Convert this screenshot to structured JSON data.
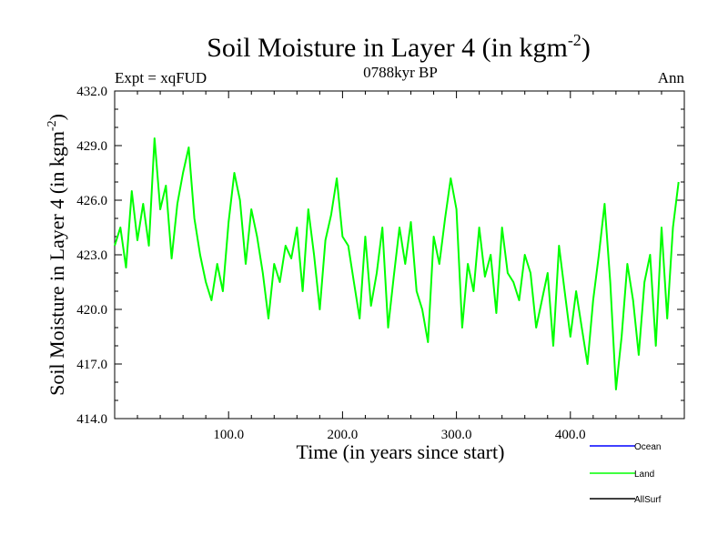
{
  "chart_data": {
    "type": "line",
    "title": "Soil Moisture in Layer 4 (in kgm",
    "title_superscript": "-2",
    "title_close": ")",
    "subtitle": "0788kyr BP",
    "left_label": "Expt = xqFUD",
    "right_label": "Ann",
    "xlabel": "Time (in years since start)",
    "ylabel": "Soil Moisture in Layer 4 (in kgm",
    "ylabel_superscript": "-2",
    "ylabel_close": ")",
    "xlim": [
      0,
      500
    ],
    "ylim": [
      414.0,
      432.0
    ],
    "x_ticks": [
      100,
      200,
      300,
      400
    ],
    "x_tick_labels": [
      "100.0",
      "200.0",
      "300.0",
      "400.0"
    ],
    "y_ticks": [
      414,
      417,
      420,
      423,
      426,
      429,
      432
    ],
    "y_tick_labels": [
      "414.0",
      "417.0",
      "420.0",
      "423.0",
      "426.0",
      "429.0",
      "432.0"
    ],
    "legend": [
      {
        "name": "Ocean",
        "color": "#0000ff"
      },
      {
        "name": "Land",
        "color": "#00ff00"
      },
      {
        "name": "AllSurf",
        "color": "#000000"
      }
    ],
    "legend_placement": "bottom-right",
    "series": [
      {
        "name": "Land",
        "color": "#00ff00",
        "x": [
          0,
          5,
          10,
          15,
          20,
          25,
          30,
          35,
          40,
          45,
          50,
          55,
          60,
          65,
          70,
          75,
          80,
          85,
          90,
          95,
          100,
          105,
          110,
          115,
          120,
          125,
          130,
          135,
          140,
          145,
          150,
          155,
          160,
          165,
          170,
          175,
          180,
          185,
          190,
          195,
          200,
          205,
          210,
          215,
          220,
          225,
          230,
          235,
          240,
          245,
          250,
          255,
          260,
          265,
          270,
          275,
          280,
          285,
          290,
          295,
          300,
          305,
          310,
          315,
          320,
          325,
          330,
          335,
          340,
          345,
          350,
          355,
          360,
          365,
          370,
          375,
          380,
          385,
          390,
          395,
          400,
          405,
          410,
          415,
          420,
          425,
          430,
          435,
          440,
          445,
          450,
          455,
          460,
          465,
          470,
          475,
          480,
          485,
          490,
          495
        ],
        "values": [
          423.5,
          424.5,
          422.3,
          426.5,
          423.8,
          425.8,
          423.5,
          429.4,
          425.5,
          426.8,
          422.8,
          425.8,
          427.5,
          428.9,
          425.0,
          423.0,
          421.5,
          420.5,
          422.5,
          421.0,
          424.8,
          427.5,
          426.0,
          422.5,
          425.5,
          424.0,
          422.0,
          419.5,
          422.5,
          421.5,
          423.5,
          422.8,
          424.5,
          421.0,
          425.5,
          423.0,
          420.0,
          423.8,
          425.2,
          427.2,
          424.0,
          423.5,
          421.5,
          419.5,
          424.0,
          420.2,
          422.0,
          424.5,
          419.0,
          421.8,
          424.5,
          422.5,
          424.8,
          421.0,
          420.0,
          418.2,
          424.0,
          422.5,
          425.0,
          427.2,
          425.5,
          419.0,
          422.5,
          421.0,
          424.5,
          421.8,
          423.0,
          419.8,
          424.5,
          422.0,
          421.5,
          420.5,
          423.0,
          422.0,
          419.0,
          420.5,
          422.0,
          418.0,
          423.5,
          421.0,
          418.5,
          421.0,
          419.0,
          417.0,
          420.5,
          423.0,
          425.8,
          421.5,
          415.6,
          418.5,
          422.5,
          420.5,
          417.5,
          421.5,
          423.0,
          418.0,
          424.5,
          419.5,
          424.5,
          427.0
        ]
      }
    ]
  }
}
